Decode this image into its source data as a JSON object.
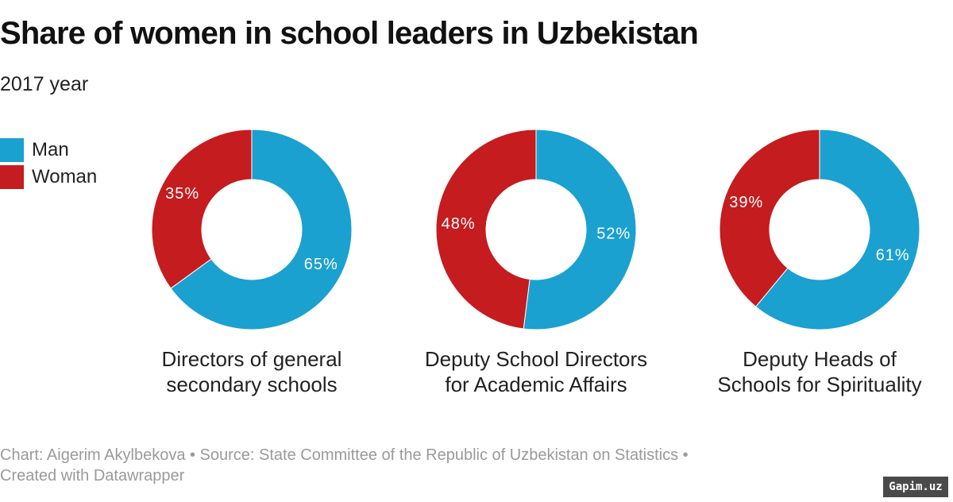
{
  "title": "Share of women in school leaders in Uzbekistan",
  "subtitle": "2017 year",
  "legend": [
    {
      "label": "Man",
      "color": "#1aa1d0"
    },
    {
      "label": "Woman",
      "color": "#c51c1f"
    }
  ],
  "footer": {
    "line1": "Chart: Aigerim Akylbekova • Source: State Committee of the Republic of Uzbekistan on Statistics •",
    "line2": "Created with Datawrapper"
  },
  "watermark": "Gapim.uz",
  "chart_data": [
    {
      "type": "pie",
      "title": "Directors of general secondary schools",
      "label_line1": "Directors of general",
      "label_line2": "secondary schools",
      "slices": [
        {
          "name": "Man",
          "value": 65,
          "label": "65%",
          "color": "#1aa1d0"
        },
        {
          "name": "Woman",
          "value": 35,
          "label": "35%",
          "color": "#c51c1f"
        }
      ]
    },
    {
      "type": "pie",
      "title": "Deputy School Directors for Academic Affairs",
      "label_line1": "Deputy School Directors",
      "label_line2": "for Academic Affairs",
      "slices": [
        {
          "name": "Man",
          "value": 52,
          "label": "52%",
          "color": "#1aa1d0"
        },
        {
          "name": "Woman",
          "value": 48,
          "label": "48%",
          "color": "#c51c1f"
        }
      ]
    },
    {
      "type": "pie",
      "title": "Deputy Heads of Schools for Spirituality",
      "label_line1": "Deputy Heads of",
      "label_line2": "Schools for Spirituality",
      "slices": [
        {
          "name": "Man",
          "value": 61,
          "label": "61%",
          "color": "#1aa1d0"
        },
        {
          "name": "Woman",
          "value": 39,
          "label": "39%",
          "color": "#c51c1f"
        }
      ]
    }
  ]
}
